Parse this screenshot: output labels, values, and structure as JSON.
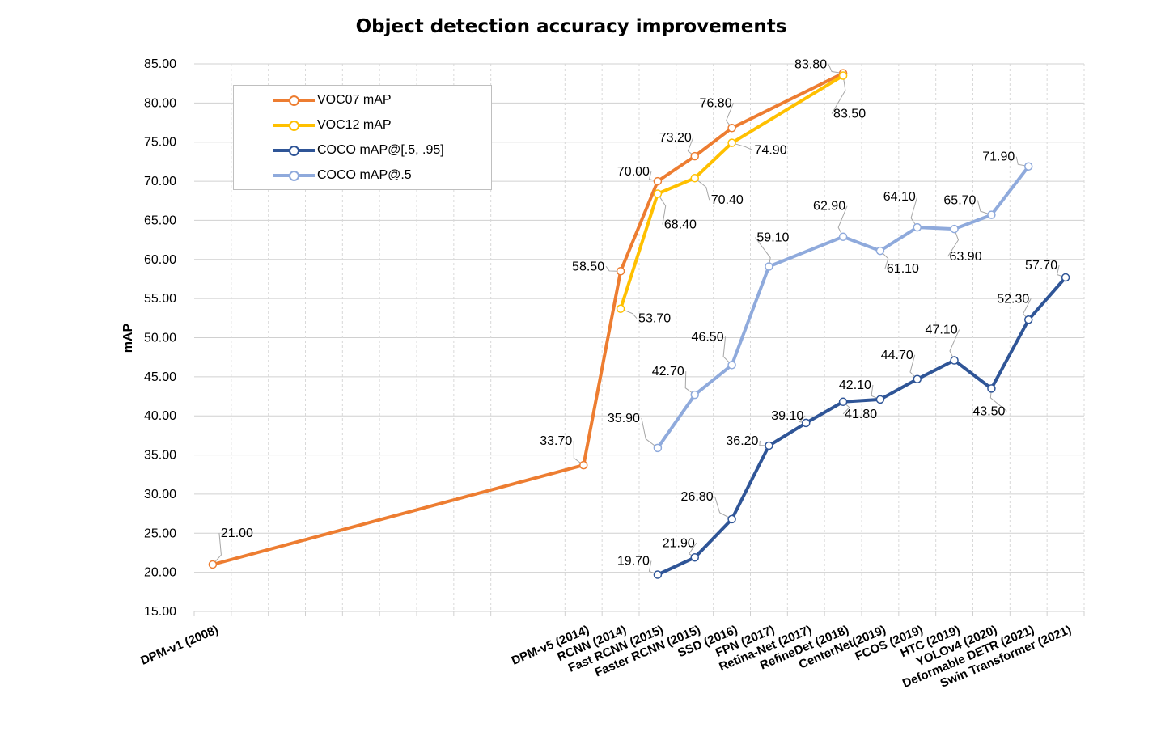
{
  "chart_data": {
    "type": "line",
    "title": "Object detection accuracy improvements",
    "xlabel": "",
    "ylabel": "mAP",
    "ylim": [
      15,
      85
    ],
    "y_ticks": [
      "15.00",
      "20.00",
      "25.00",
      "30.00",
      "35.00",
      "40.00",
      "45.00",
      "50.00",
      "55.00",
      "60.00",
      "65.00",
      "70.00",
      "75.00",
      "80.00",
      "85.00"
    ],
    "categories": [
      "DPM-v1 (2008)",
      "",
      "",
      "",
      "",
      "",
      "",
      "",
      "",
      "",
      "DPM-v5 (2014)",
      "RCNN (2014)",
      "Fast RCNN (2015)",
      "Faster RCNN (2015)",
      "SSD (2016)",
      "FPN (2017)",
      "Retina-Net (2017)",
      "RefineDet (2018)",
      "CenterNet(2019)",
      "FCOS (2019)",
      "HTC (2019)",
      "YOLOv4 (2020)",
      "Deformable DETR (2021)",
      "Swin Transformer (2021)"
    ],
    "grid": true,
    "legend_position": "top-left",
    "series": [
      {
        "name": "VOC07 mAP",
        "color": "#ED7D31",
        "values": [
          21.0,
          null,
          null,
          null,
          null,
          null,
          null,
          null,
          null,
          null,
          33.7,
          58.5,
          70.0,
          73.2,
          76.8,
          null,
          null,
          83.8,
          null,
          null,
          null,
          null,
          null,
          null
        ],
        "labels": [
          "21.00",
          null,
          null,
          null,
          null,
          null,
          null,
          null,
          null,
          null,
          "33.70",
          "58.50",
          "70.00",
          "73.20",
          "76.80",
          null,
          null,
          "83.80",
          null,
          null,
          null,
          null,
          null,
          null
        ]
      },
      {
        "name": "VOC12 mAP",
        "color": "#FFC000",
        "values": [
          null,
          null,
          null,
          null,
          null,
          null,
          null,
          null,
          null,
          null,
          null,
          53.7,
          68.4,
          70.4,
          74.9,
          null,
          null,
          83.5,
          null,
          null,
          null,
          null,
          null,
          null
        ],
        "labels": [
          null,
          null,
          null,
          null,
          null,
          null,
          null,
          null,
          null,
          null,
          null,
          "53.70",
          "68.40",
          "70.40",
          "74.90",
          null,
          null,
          "83.50",
          null,
          null,
          null,
          null,
          null,
          null
        ]
      },
      {
        "name": "COCO mAP@[.5, .95]",
        "color": "#2F5597",
        "values": [
          null,
          null,
          null,
          null,
          null,
          null,
          null,
          null,
          null,
          null,
          null,
          null,
          19.7,
          21.9,
          26.8,
          36.2,
          39.1,
          41.8,
          42.1,
          44.7,
          47.1,
          43.5,
          52.3,
          57.7
        ],
        "labels": [
          null,
          null,
          null,
          null,
          null,
          null,
          null,
          null,
          null,
          null,
          null,
          null,
          "19.70",
          "21.90",
          "26.80",
          "36.20",
          "39.10",
          "41.80",
          "42.10",
          "44.70",
          "47.10",
          "43.50",
          "52.30",
          "57.70"
        ]
      },
      {
        "name": "COCO mAP@.5",
        "color": "#8FAADC",
        "values": [
          null,
          null,
          null,
          null,
          null,
          null,
          null,
          null,
          null,
          null,
          null,
          null,
          35.9,
          42.7,
          46.5,
          59.1,
          null,
          62.9,
          61.1,
          64.1,
          63.9,
          65.7,
          71.9,
          null
        ],
        "labels": [
          null,
          null,
          null,
          null,
          null,
          null,
          null,
          null,
          null,
          null,
          null,
          null,
          "35.90",
          "42.70",
          "46.50",
          "59.10",
          null,
          "62.90",
          "61.10",
          "64.10",
          "63.90",
          "65.70",
          "71.90",
          null
        ]
      }
    ]
  }
}
